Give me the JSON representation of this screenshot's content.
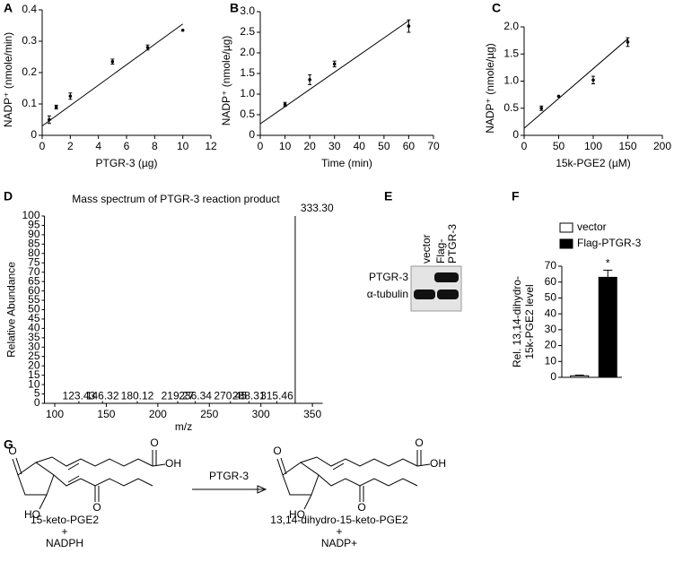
{
  "panel_labels": [
    "A",
    "B",
    "C",
    "D",
    "E",
    "F",
    "G"
  ],
  "chart_data": [
    {
      "type": "scatter",
      "xlabel": "PTGR-3 (µg)",
      "ylabel": "NADP⁺ (nmole/min)",
      "x": [
        0.5,
        1,
        2,
        5,
        7.5,
        10
      ],
      "values": [
        0.05,
        0.09,
        0.125,
        0.235,
        0.28,
        0.335
      ],
      "errors": [
        0.012,
        0.006,
        0.01,
        0.008,
        0.008,
        0
      ],
      "fit_line": {
        "x": [
          0,
          10
        ],
        "y": [
          0.03,
          0.355
        ]
      },
      "xlim": [
        0,
        12
      ],
      "xticks": [
        0,
        2,
        4,
        6,
        8,
        10,
        12
      ],
      "ylim": [
        0,
        0.4
      ],
      "yticks": [
        0,
        0.1,
        0.2,
        0.3,
        0.4
      ],
      "color": "#000000"
    },
    {
      "type": "scatter",
      "xlabel": "Time (min)",
      "ylabel": "NADP⁺ (nmole/µg)",
      "x": [
        10,
        20,
        30,
        60
      ],
      "values": [
        0.75,
        1.35,
        1.73,
        2.65
      ],
      "errors": [
        0.05,
        0.12,
        0.07,
        0.15
      ],
      "fit_line": {
        "x": [
          0,
          60
        ],
        "y": [
          0.28,
          2.78
        ]
      },
      "xlim": [
        0,
        70
      ],
      "xticks": [
        0,
        10,
        20,
        30,
        40,
        50,
        60,
        70
      ],
      "ylim": [
        0,
        3
      ],
      "yticks": [
        0,
        0.5,
        {
          "value": 1,
          "label": "1.0"
        },
        1.5,
        {
          "value": 2,
          "label": "2.0"
        },
        2.5,
        {
          "value": 3,
          "label": "3.0"
        }
      ],
      "color": "#000000"
    },
    {
      "type": "scatter",
      "xlabel": "15k-PGE2 (µM)",
      "ylabel": "NADP⁺ (nmole/µg)",
      "x": [
        25,
        50,
        100,
        150
      ],
      "values": [
        0.5,
        0.72,
        1.02,
        1.72
      ],
      "errors": [
        0.04,
        0,
        0.07,
        0.08
      ],
      "fit_line": {
        "x": [
          0,
          150
        ],
        "y": [
          0.13,
          1.78
        ]
      },
      "xlim": [
        0,
        200
      ],
      "xticks": [
        0,
        50,
        100,
        150,
        200
      ],
      "ylim": [
        0,
        2
      ],
      "yticks": [
        0,
        0.5,
        {
          "value": 1,
          "label": "1.0"
        },
        1.5,
        {
          "value": 2,
          "label": "2.0"
        }
      ],
      "color": "#000000"
    },
    {
      "type": "stem",
      "title": "Mass spectrum of PTGR-3 reaction product",
      "xlabel": "m/z",
      "ylabel": "Relative Abundance",
      "x": [
        123.43,
        146.32,
        180.12,
        219.27,
        236.34,
        270.45,
        288.31,
        315.46,
        333.3
      ],
      "values": [
        1.2,
        1.2,
        1.2,
        1.2,
        1.2,
        1.2,
        1.2,
        1.2,
        100
      ],
      "value_labels": [
        "123.43",
        "146.32",
        "180.12",
        "219.27",
        "236.34",
        "270.45",
        "288.31",
        "315.46",
        "333.30"
      ],
      "xlim": [
        90,
        360
      ],
      "xticks": [
        100,
        150,
        200,
        250,
        300,
        350
      ],
      "ylim": [
        0,
        100
      ],
      "yticks": [
        0,
        5,
        10,
        15,
        20,
        25,
        30,
        35,
        40,
        45,
        50,
        55,
        60,
        65,
        70,
        75,
        80,
        85,
        90,
        95,
        100
      ],
      "color": "#777777"
    },
    {
      "type": "bar",
      "ylabel": [
        "Rel. 13,14-dihydro-",
        "15k-PGE2 level"
      ],
      "categories": [
        "vector",
        "Flag-PTGR-3"
      ],
      "values": [
        1,
        63
      ],
      "errors": [
        0.4,
        4.5
      ],
      "colors": [
        "#ffffff",
        "#000000"
      ],
      "annotation": "*",
      "ylim": [
        0,
        70
      ],
      "yticks": [
        0,
        10,
        20,
        30,
        40,
        50,
        60,
        70
      ]
    }
  ],
  "blot": {
    "lanes": [
      [
        "vector"
      ],
      [
        "Flag-",
        "PTGR-3"
      ]
    ],
    "rows": [
      "PTGR-3",
      "α-tubulin"
    ]
  },
  "reaction": {
    "enzyme": "PTGR-3",
    "substrate": [
      "15-keto-PGE2",
      "+",
      "NADPH"
    ],
    "product": [
      "13,14-dihydro-15-keto-PGE2",
      "+",
      "NADP+"
    ],
    "substrate_atoms": [
      "O",
      "O",
      "OH",
      "HO",
      "O"
    ],
    "product_atoms": [
      "O",
      "O",
      "OH",
      "HO",
      "O"
    ]
  }
}
